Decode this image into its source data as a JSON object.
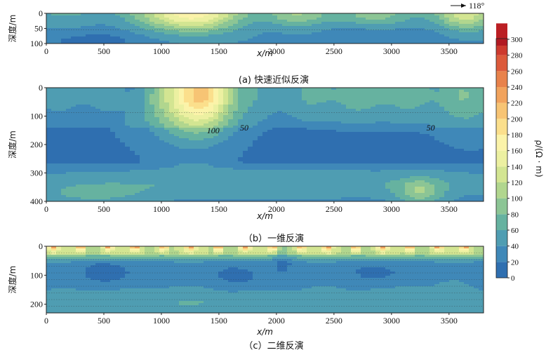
{
  "north_arrow": {
    "label": "118°"
  },
  "colorbar": {
    "label": "ρ/(Ω · m)",
    "ticks": [
      0,
      20,
      40,
      60,
      80,
      100,
      120,
      140,
      160,
      180,
      200,
      220,
      240,
      260,
      280,
      300
    ],
    "stops": [
      [
        0,
        "#2f6fb0"
      ],
      [
        20,
        "#3f88b8"
      ],
      [
        40,
        "#4f9db2"
      ],
      [
        60,
        "#66b2a0"
      ],
      [
        80,
        "#8cc595"
      ],
      [
        100,
        "#b1d68e"
      ],
      [
        120,
        "#d3e592"
      ],
      [
        140,
        "#ecf0a1"
      ],
      [
        160,
        "#fbf3a9"
      ],
      [
        180,
        "#fbdf8c"
      ],
      [
        200,
        "#f7c474"
      ],
      [
        220,
        "#f1a35d"
      ],
      [
        240,
        "#e8824b"
      ],
      [
        260,
        "#dc5a3b"
      ],
      [
        280,
        "#cd3a2e"
      ],
      [
        300,
        "#bb1f24"
      ]
    ]
  },
  "chart_data": [
    {
      "type": "heatmap",
      "caption": "(a) 快速近似反演",
      "xlabel": "x/m",
      "ylabel": "深度/m",
      "xlim": [
        0,
        3800
      ],
      "ylim": [
        0,
        100
      ],
      "xticks": [
        0,
        500,
        1000,
        1500,
        2000,
        2500,
        3000,
        3500
      ],
      "yticks": [
        0,
        50,
        100
      ],
      "contour_labels": []
    },
    {
      "type": "heatmap",
      "caption": "（b）一维反演",
      "xlabel": "x/m",
      "ylabel": "深度/m",
      "xlim": [
        0,
        3800
      ],
      "ylim": [
        0,
        400
      ],
      "xticks": [
        0,
        500,
        1000,
        1500,
        2000,
        2500,
        3000,
        3500
      ],
      "yticks": [
        0,
        100,
        200,
        300,
        400
      ],
      "contour_labels": [
        {
          "text": "100",
          "x": 1450,
          "y": 160
        },
        {
          "text": "50",
          "x": 1720,
          "y": 150
        },
        {
          "text": "50",
          "x": 3340,
          "y": 150
        }
      ]
    },
    {
      "type": "heatmap",
      "caption": "（c）二维反演",
      "xlabel": "x/m",
      "ylabel": "深度/m",
      "xlim": [
        0,
        3800
      ],
      "ylim": [
        0,
        230
      ],
      "xticks": [
        0,
        500,
        1000,
        1500,
        2000,
        2500,
        3000,
        3500
      ],
      "yticks": [
        0,
        100,
        200
      ],
      "contour_labels": []
    }
  ]
}
